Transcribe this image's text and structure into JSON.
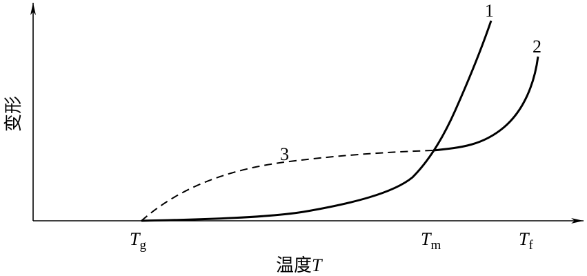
{
  "y_axis_label": "变形",
  "x_axis_label": {
    "text": "温度",
    "variable": "T"
  },
  "x_marks": [
    {
      "symbol": "T",
      "subscript": "g"
    },
    {
      "symbol": "T",
      "subscript": "m"
    },
    {
      "symbol": "T",
      "subscript": "f"
    }
  ],
  "curve_labels": [
    "1",
    "2",
    "3"
  ]
}
